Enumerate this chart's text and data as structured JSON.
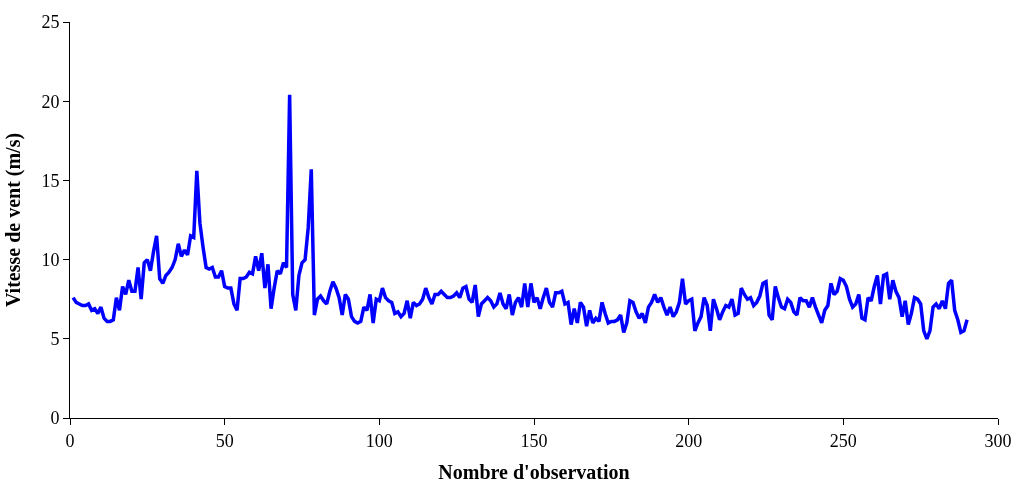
{
  "chart_data": {
    "type": "line",
    "xlabel": "Nombre d'observation",
    "ylabel": "Vitesse de vent (m/s)",
    "xlim": [
      0,
      300
    ],
    "xticks": [
      0,
      50,
      100,
      150,
      200,
      250,
      300
    ],
    "ylim": [
      0,
      25
    ],
    "yticks": [
      0,
      5,
      10,
      15,
      20,
      25
    ],
    "marker": "none",
    "line_style": "solid",
    "x": [
      1,
      2,
      3,
      4,
      5,
      6,
      7,
      8,
      9,
      10,
      11,
      12,
      13,
      14,
      15,
      16,
      17,
      18,
      19,
      20,
      21,
      22,
      23,
      24,
      25,
      26,
      27,
      28,
      29,
      30,
      31,
      32,
      33,
      34,
      35,
      36,
      37,
      38,
      39,
      40,
      41,
      42,
      43,
      44,
      45,
      46,
      47,
      48,
      49,
      50,
      51,
      52,
      53,
      54,
      55,
      56,
      57,
      58,
      59,
      60,
      61,
      62,
      63,
      64,
      65,
      66,
      67,
      68,
      69,
      70,
      71,
      72,
      73,
      74,
      75,
      76,
      77,
      78,
      79,
      80,
      81,
      82,
      83,
      84,
      85,
      86,
      87,
      88,
      89,
      90,
      91,
      92,
      93,
      94,
      95,
      96,
      97,
      98,
      99,
      100,
      101,
      102,
      103,
      104,
      105,
      106,
      107,
      108,
      109,
      110,
      111,
      112,
      113,
      114,
      115,
      116,
      117,
      118,
      119,
      120,
      121,
      122,
      123,
      124,
      125,
      126,
      127,
      128,
      129,
      130,
      131,
      132,
      133,
      134,
      135,
      136,
      137,
      138,
      139,
      140,
      141,
      142,
      143,
      144,
      145,
      146,
      147,
      148,
      149,
      150,
      151,
      152,
      153,
      154,
      155,
      156,
      157,
      158,
      159,
      160,
      161,
      162,
      163,
      164,
      165,
      166,
      167,
      168,
      169,
      170,
      171,
      172,
      173,
      174,
      175,
      176,
      177,
      178,
      179,
      180,
      181,
      182,
      183,
      184,
      185,
      186,
      187,
      188,
      189,
      190,
      191,
      192,
      193,
      194,
      195,
      196,
      197,
      198,
      199,
      200,
      201,
      202,
      203,
      204,
      205,
      206,
      207,
      208,
      209,
      210,
      211,
      212,
      213,
      214,
      215,
      216,
      217,
      218,
      219,
      220,
      221,
      222,
      223,
      224,
      225,
      226,
      227,
      228,
      229,
      230,
      231,
      232,
      233,
      234,
      235,
      236,
      237,
      238,
      239,
      240,
      241,
      242,
      243,
      244,
      245,
      246,
      247,
      248,
      249,
      250,
      251,
      252,
      253,
      254,
      255,
      256,
      257,
      258,
      259,
      260,
      261,
      262,
      263,
      264,
      265,
      266,
      267,
      268,
      269,
      270,
      271,
      272,
      273,
      274,
      275,
      276,
      277,
      278,
      279,
      280,
      281,
      282,
      283,
      284,
      285,
      286,
      287,
      288,
      289,
      290
    ],
    "series": [
      {
        "color": "#0000ff",
        "values": [
          7.6,
          7.3,
          7.2,
          7.1,
          7.1,
          7.2,
          6.8,
          6.9,
          6.6,
          7.0,
          6.3,
          6.1,
          6.1,
          6.2,
          7.6,
          6.8,
          8.3,
          7.8,
          8.7,
          8.0,
          8.0,
          9.5,
          7.5,
          9.8,
          10.0,
          9.3,
          10.5,
          11.5,
          8.8,
          8.5,
          9.0,
          9.2,
          9.5,
          10.0,
          11.0,
          10.2,
          10.6,
          10.3,
          11.5,
          11.4,
          15.6,
          12.3,
          10.8,
          9.5,
          9.4,
          9.5,
          8.9,
          8.9,
          9.3,
          8.3,
          8.2,
          8.2,
          7.2,
          6.8,
          8.8,
          8.8,
          8.9,
          9.2,
          9.1,
          10.2,
          9.3,
          10.4,
          8.2,
          9.7,
          6.9,
          8.2,
          9.3,
          9.1,
          9.8,
          9.5,
          20.4,
          7.8,
          6.8,
          9.0,
          9.8,
          10.0,
          12.0,
          15.7,
          6.5,
          7.5,
          7.7,
          7.4,
          7.2,
          8.0,
          8.6,
          8.2,
          7.6,
          6.5,
          7.8,
          7.5,
          6.4,
          6.1,
          6.0,
          6.1,
          7.0,
          6.8,
          7.8,
          6.0,
          7.5,
          7.4,
          8.2,
          7.6,
          7.4,
          7.3,
          6.6,
          6.7,
          6.4,
          6.6,
          7.4,
          6.3,
          7.3,
          7.1,
          7.2,
          7.5,
          8.2,
          7.6,
          7.2,
          7.8,
          7.8,
          8.0,
          7.8,
          7.6,
          7.6,
          7.7,
          7.9,
          7.6,
          8.2,
          8.3,
          7.5,
          7.3,
          8.4,
          6.4,
          7.2,
          7.4,
          7.6,
          7.4,
          7.0,
          7.2,
          7.9,
          7.2,
          6.9,
          7.8,
          6.5,
          7.3,
          7.6,
          7.0,
          8.5,
          7.0,
          8.5,
          7.3,
          7.6,
          6.9,
          7.6,
          8.2,
          7.3,
          7.0,
          7.9,
          7.9,
          8.0,
          7.2,
          7.3,
          5.9,
          6.9,
          6.0,
          7.3,
          7.0,
          5.8,
          6.8,
          6.0,
          6.3,
          6.1,
          7.3,
          6.6,
          6.0,
          6.1,
          6.1,
          6.2,
          6.5,
          5.4,
          6.0,
          7.4,
          7.3,
          6.7,
          6.3,
          6.6,
          6.0,
          7.0,
          7.3,
          7.8,
          7.3,
          7.6,
          7.0,
          6.5,
          7.0,
          6.4,
          6.7,
          7.3,
          8.8,
          7.2,
          7.4,
          7.5,
          5.5,
          6.0,
          6.4,
          7.6,
          7.1,
          5.5,
          7.5,
          6.9,
          6.2,
          6.7,
          7.1,
          7.0,
          7.5,
          6.5,
          6.6,
          8.2,
          7.8,
          7.5,
          7.6,
          7.1,
          7.3,
          7.7,
          8.5,
          8.6,
          6.5,
          6.2,
          8.3,
          7.6,
          7.0,
          6.9,
          7.5,
          7.3,
          6.7,
          6.5,
          7.6,
          7.4,
          7.4,
          7.0,
          7.6,
          7.0,
          6.5,
          6.0,
          6.8,
          7.1,
          8.5,
          7.8,
          8.0,
          8.8,
          8.7,
          8.3,
          7.5,
          7.0,
          7.2,
          7.8,
          6.3,
          6.2,
          7.6,
          7.4,
          8.3,
          9.0,
          7.2,
          9.0,
          9.1,
          7.5,
          8.7,
          8.0,
          7.6,
          6.4,
          7.4,
          5.9,
          6.6,
          7.6,
          7.5,
          7.2,
          5.5,
          5.0,
          5.5,
          7.0,
          7.2,
          6.9,
          7.4,
          6.9,
          8.5,
          8.7,
          6.8,
          6.2,
          5.4,
          5.5,
          6.2
        ]
      }
    ]
  }
}
